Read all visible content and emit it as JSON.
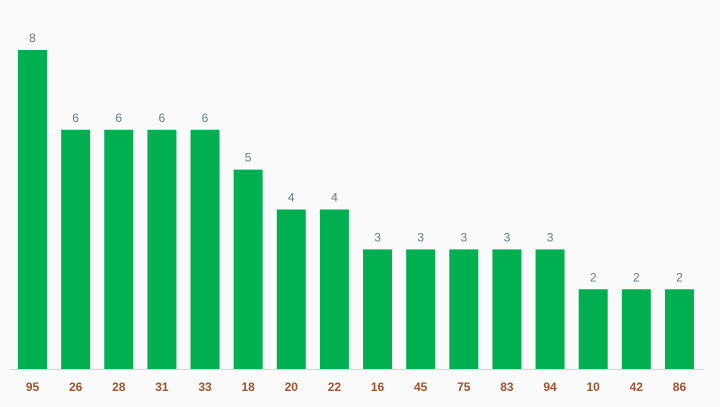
{
  "chart_data": {
    "type": "bar",
    "title": "",
    "xlabel": "",
    "ylabel": "",
    "categories": [
      "95",
      "26",
      "28",
      "31",
      "33",
      "18",
      "20",
      "22",
      "16",
      "45",
      "75",
      "83",
      "94",
      "10",
      "42",
      "86"
    ],
    "values": [
      8,
      6,
      6,
      6,
      6,
      5,
      4,
      4,
      3,
      3,
      3,
      3,
      3,
      2,
      2,
      2
    ],
    "ylim": [
      0,
      8
    ],
    "grid": false,
    "legend": "none",
    "show_data_labels": true
  },
  "colors": {
    "background": "#fafafa",
    "bar": "#00b050",
    "value_label": "#607d8b",
    "category_label": "#a0522d",
    "axis_line": "#d6d6d6"
  }
}
